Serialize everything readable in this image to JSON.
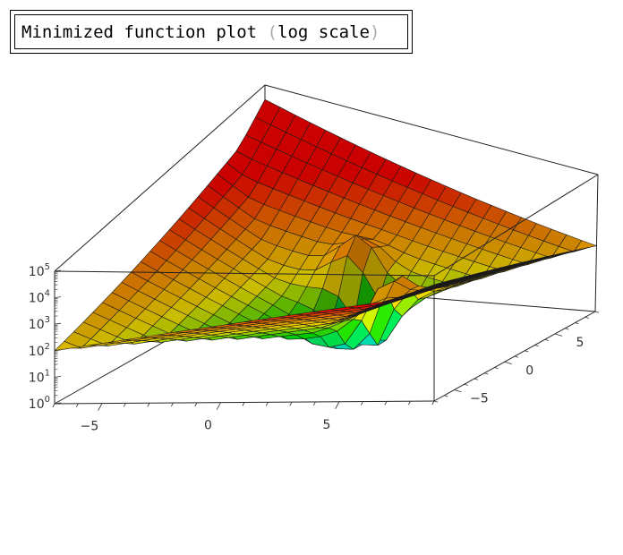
{
  "title": {
    "main": "Minimized function plot ",
    "open_paren": "(",
    "qualifier": "log scale",
    "close_paren": ")"
  },
  "chart_data": {
    "type": "surface",
    "title": "Minimized function plot (log scale)",
    "x_ticks": [
      "−5",
      "0",
      "5"
    ],
    "y_ticks": [
      "−5",
      "0",
      "5"
    ],
    "z_ticks": [
      {
        "base": "10",
        "exp": "0"
      },
      {
        "base": "10",
        "exp": "1"
      },
      {
        "base": "10",
        "exp": "2"
      },
      {
        "base": "10",
        "exp": "3"
      },
      {
        "base": "10",
        "exp": "4"
      },
      {
        "base": "10",
        "exp": "5"
      }
    ],
    "xlim": [
      -7,
      9
    ],
    "ylim": [
      -7,
      9
    ],
    "zlim_log10": [
      0,
      5
    ],
    "z_scale": "log",
    "grid": false,
    "box": true,
    "colormap": [
      "#ff0000",
      "#ff8800",
      "#ffee00",
      "#00dd00",
      "#00eeee"
    ]
  }
}
